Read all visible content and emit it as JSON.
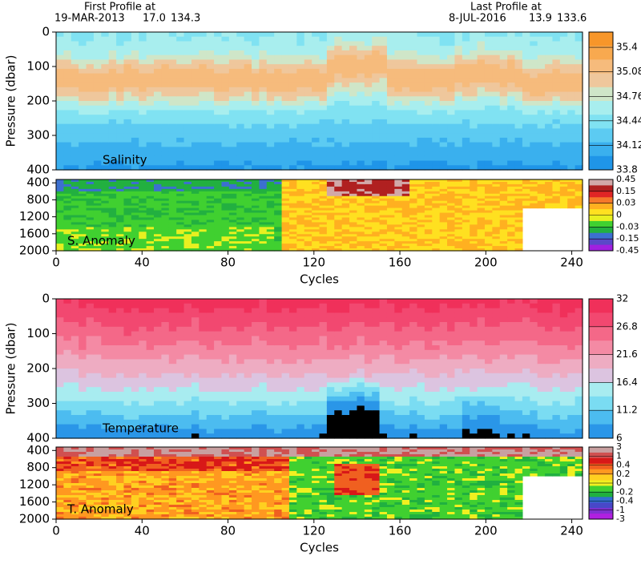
{
  "header": {
    "first_label": "First Profile at",
    "first_date": "19-MAR-2013",
    "first_lat": "17.0",
    "first_lon": "134.3",
    "last_label": "Last Profile at",
    "last_date": "8-JUL-2016",
    "last_lat": "13.9",
    "last_lon": "133.6"
  },
  "chart_data": [
    {
      "type": "salinity",
      "label": "Salinity",
      "ylabel": "Pressure (dbar)",
      "ylim": [
        400,
        0
      ],
      "yticks": [
        0,
        100,
        200,
        300,
        400
      ],
      "xlim": [
        0,
        245
      ],
      "colorbar": {
        "scale": "linear",
        "lim": [
          33.8,
          35.6
        ],
        "ticks": [
          35.4,
          35.08,
          34.76,
          34.44,
          34.12,
          33.8
        ],
        "colors": [
          "#f7962a",
          "#f8a94f",
          "#f6bb7c",
          "#efc79c",
          "#cfe6c8",
          "#a8eeee",
          "#80e2f2",
          "#5ccbf2",
          "#3ab0ee",
          "#1f95e8"
        ]
      }
    },
    {
      "type": "anomaly",
      "label": "S. Anomaly",
      "ylim": [
        2000,
        320
      ],
      "yticks": [
        400,
        800,
        1200,
        1600,
        2000
      ],
      "xlim": [
        0,
        245
      ],
      "xticks": [
        0,
        40,
        80,
        120,
        160,
        200,
        240
      ],
      "xlabel": "Cycles",
      "colorbar": {
        "scale": "even",
        "ticks": [
          0.45,
          0.15,
          0.03,
          0,
          -0.03,
          -0.15,
          -0.45
        ],
        "colors": [
          "#d2a8a8",
          "#b02020",
          "#e02525",
          "#f5782a",
          "#ffb020",
          "#ffe020",
          "#e8f020",
          "#40d030",
          "#22b040",
          "#3c70d0",
          "#5a48c8",
          "#a020e0"
        ]
      }
    },
    {
      "type": "temperature",
      "label": "Temperature",
      "ylabel": "Pressure (dbar)",
      "ylim": [
        400,
        0
      ],
      "yticks": [
        0,
        100,
        200,
        300,
        400
      ],
      "xlim": [
        0,
        245
      ],
      "colorbar": {
        "scale": "linear",
        "lim": [
          6,
          32
        ],
        "ticks": [
          32,
          26.8,
          21.6,
          16.4,
          11.2,
          6
        ],
        "colors": [
          "#f0305a",
          "#f24870",
          "#f46888",
          "#f48aa4",
          "#eeacc2",
          "#dcc4e0",
          "#a8ecf0",
          "#7adcf2",
          "#4cbcf0",
          "#2a96e8"
        ]
      }
    },
    {
      "type": "anomaly",
      "label": "T. Anomaly",
      "ylim": [
        2000,
        320
      ],
      "yticks": [
        400,
        800,
        1200,
        1600,
        2000
      ],
      "xlim": [
        0,
        245
      ],
      "xticks": [
        0,
        40,
        80,
        120,
        160,
        200,
        240
      ],
      "xlabel": "Cycles",
      "colorbar": {
        "scale": "even",
        "ticks": [
          3,
          1,
          0.4,
          0.2,
          0,
          -0.2,
          -0.4,
          -1,
          -3
        ],
        "colors": [
          "#c8a0a0",
          "#d05050",
          "#d81818",
          "#f06020",
          "#ff9820",
          "#ffd020",
          "#f0f020",
          "#40d030",
          "#20b040",
          "#3070d0",
          "#4848c8",
          "#8030d0",
          "#b020e0"
        ]
      }
    }
  ]
}
